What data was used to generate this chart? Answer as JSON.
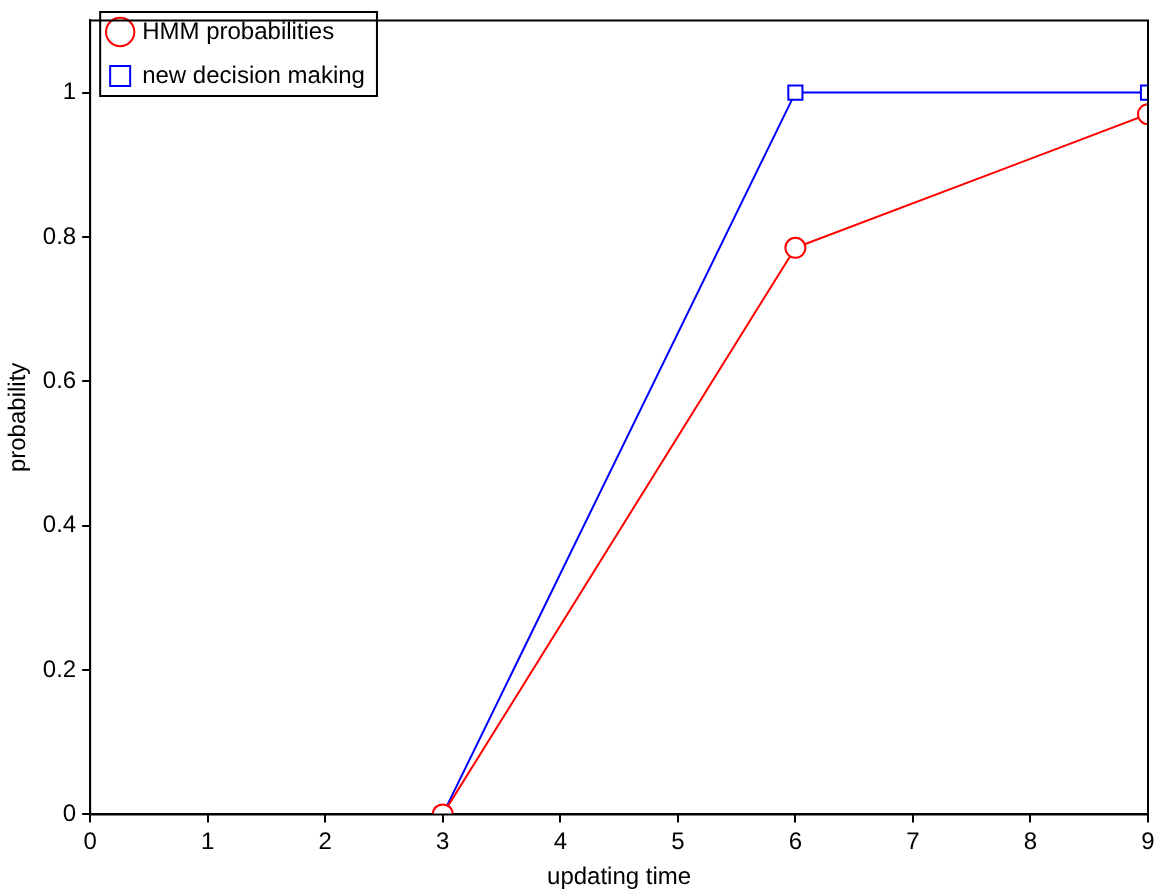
{
  "chart_data": {
    "type": "line",
    "xlabel": "updating time",
    "ylabel": "probability",
    "x": [
      3,
      6,
      9
    ],
    "series": [
      {
        "name": "HMM probabilities",
        "color": "#ff0000",
        "values": [
          0,
          0.785,
          0.97
        ],
        "marker": "circle"
      },
      {
        "name": "new decision making",
        "color": "#0000ff",
        "values": [
          0,
          1,
          1
        ],
        "marker": "square"
      }
    ],
    "xlim": [
      0,
      9
    ],
    "xticks": [
      0,
      1,
      2,
      3,
      4,
      5,
      6,
      7,
      8,
      9
    ],
    "ylim": [
      0,
      1.1
    ],
    "yticks": [
      0,
      0.2,
      0.4,
      0.6,
      0.8,
      1
    ],
    "grid": false,
    "legend": "top left",
    "line_style": "solid"
  }
}
